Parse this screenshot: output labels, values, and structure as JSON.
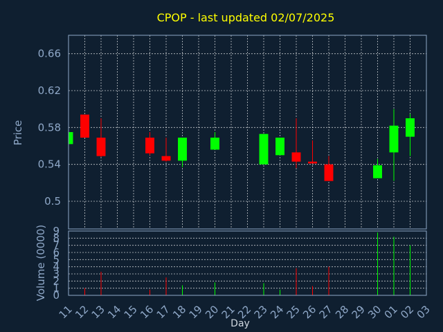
{
  "chart_data": {
    "type": "candlestick",
    "title": "CPOP - last updated 02/07/2025",
    "xlabel": "Day",
    "price_panel": {
      "ylabel": "Price",
      "ylim": [
        0.47,
        0.68
      ],
      "yticks": [
        0.5,
        0.54,
        0.58,
        0.62,
        0.66
      ],
      "ytick_labels": [
        "0.5",
        "0.54",
        "0.58",
        "0.62",
        "0.66"
      ]
    },
    "volume_panel": {
      "ylabel": "Volume (0000)",
      "ylim": [
        0,
        9
      ],
      "yticks": [
        0,
        1,
        2,
        3,
        4,
        5,
        6,
        7,
        8,
        9
      ],
      "ytick_labels": [
        "0",
        "1",
        "2",
        "3",
        "4",
        "5",
        "6",
        "7",
        "8",
        "9"
      ]
    },
    "x_tick_labels": [
      "11",
      "12",
      "13",
      "14",
      "15",
      "16",
      "17",
      "18",
      "19",
      "20",
      "21",
      "22",
      "23",
      "24",
      "25",
      "26",
      "27",
      "28",
      "29",
      "30",
      "01",
      "02",
      "03"
    ],
    "colors": {
      "up": "#00ff00",
      "down": "#ff0000",
      "title": "#ffff00",
      "axis_text": "#8fa8c8",
      "background": "#0f1f30"
    },
    "candles": [
      {
        "day": "11",
        "open": 0.562,
        "high": 0.575,
        "low": 0.562,
        "close": 0.575,
        "volume": 0.3
      },
      {
        "day": "12",
        "open": 0.594,
        "high": 0.594,
        "low": 0.569,
        "close": 0.569,
        "volume": 1.0
      },
      {
        "day": "13",
        "open": 0.569,
        "high": 0.59,
        "low": 0.548,
        "close": 0.549,
        "volume": 3.3
      },
      {
        "day": "16",
        "open": 0.569,
        "high": 0.575,
        "low": 0.55,
        "close": 0.552,
        "volume": 0.8
      },
      {
        "day": "17",
        "open": 0.549,
        "high": 0.569,
        "low": 0.543,
        "close": 0.544,
        "volume": 2.5
      },
      {
        "day": "18",
        "open": 0.544,
        "high": 0.569,
        "low": 0.537,
        "close": 0.569,
        "volume": 1.4
      },
      {
        "day": "20",
        "open": 0.556,
        "high": 0.575,
        "low": 0.556,
        "close": 0.569,
        "volume": 1.8
      },
      {
        "day": "23",
        "open": 0.54,
        "high": 0.573,
        "low": 0.54,
        "close": 0.573,
        "volume": 1.7
      },
      {
        "day": "24",
        "open": 0.55,
        "high": 0.569,
        "low": 0.55,
        "close": 0.569,
        "volume": 0.8
      },
      {
        "day": "25",
        "open": 0.553,
        "high": 0.59,
        "low": 0.536,
        "close": 0.543,
        "volume": 3.8
      },
      {
        "day": "26",
        "open": 0.543,
        "high": 0.566,
        "low": 0.541,
        "close": 0.541,
        "volume": 1.3
      },
      {
        "day": "27",
        "open": 0.54,
        "high": 0.549,
        "low": 0.522,
        "close": 0.522,
        "volume": 4.0
      },
      {
        "day": "30",
        "open": 0.525,
        "high": 0.546,
        "low": 0.525,
        "close": 0.539,
        "volume": 8.8
      },
      {
        "day": "01",
        "open": 0.553,
        "high": 0.6,
        "low": 0.522,
        "close": 0.582,
        "volume": 8.2
      },
      {
        "day": "02",
        "open": 0.57,
        "high": 0.595,
        "low": 0.549,
        "close": 0.59,
        "volume": 7.0
      }
    ]
  }
}
